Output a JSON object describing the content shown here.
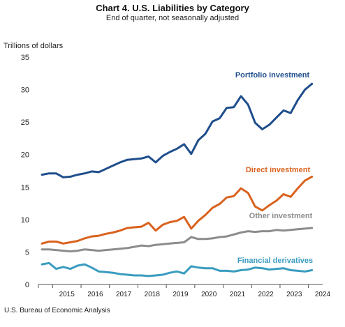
{
  "chart_data": {
    "type": "line",
    "title": "Chart 4. U.S. Liabilities by Category",
    "subtitle": "End of quarter, not seasonally adjusted",
    "ylabel": "Trillions of dollars",
    "xlabel": "",
    "source": "U.S. Bureau of Economic Analysis",
    "ylim": [
      0,
      35
    ],
    "yticks": [
      0,
      5,
      10,
      15,
      20,
      25,
      30,
      35
    ],
    "years": [
      "2015",
      "2016",
      "2017",
      "2018",
      "2019",
      "2020",
      "2021",
      "2022",
      "2023",
      "2024"
    ],
    "x": [
      "2014Q3",
      "2014Q4",
      "2015Q1",
      "2015Q2",
      "2015Q3",
      "2015Q4",
      "2016Q1",
      "2016Q2",
      "2016Q3",
      "2016Q4",
      "2017Q1",
      "2017Q2",
      "2017Q3",
      "2017Q4",
      "2018Q1",
      "2018Q2",
      "2018Q3",
      "2018Q4",
      "2019Q1",
      "2019Q2",
      "2019Q3",
      "2019Q4",
      "2020Q1",
      "2020Q2",
      "2020Q3",
      "2020Q4",
      "2021Q1",
      "2021Q2",
      "2021Q3",
      "2021Q4",
      "2022Q1",
      "2022Q2",
      "2022Q3",
      "2022Q4",
      "2023Q1",
      "2023Q2",
      "2023Q3",
      "2023Q4",
      "2024Q1",
      "2024Q2"
    ],
    "grid": false,
    "legend": "inline labels",
    "series": [
      {
        "name": "Portfolio investment",
        "color": "#1f4e8c",
        "values": [
          16.9,
          17.1,
          17.1,
          16.5,
          16.6,
          16.9,
          17.1,
          17.4,
          17.3,
          17.8,
          18.3,
          18.8,
          19.2,
          19.3,
          19.4,
          19.7,
          18.8,
          19.8,
          20.4,
          20.9,
          21.6,
          20.1,
          22.2,
          23.2,
          25.1,
          25.6,
          27.2,
          27.3,
          29.0,
          27.7,
          24.9,
          23.9,
          24.6,
          25.7,
          26.8,
          26.4,
          28.4,
          30.0,
          30.9,
          null
        ]
      },
      {
        "name": "Direct investment",
        "color": "#d9621e",
        "values": [
          6.3,
          6.6,
          6.6,
          6.3,
          6.5,
          6.7,
          7.1,
          7.4,
          7.5,
          7.8,
          8.0,
          8.3,
          8.7,
          8.8,
          8.9,
          9.5,
          8.3,
          9.2,
          9.6,
          9.8,
          10.4,
          8.6,
          9.8,
          10.7,
          11.8,
          12.4,
          13.4,
          13.6,
          14.8,
          14.1,
          12.0,
          11.4,
          12.2,
          12.9,
          13.9,
          13.5,
          14.8,
          16.0,
          16.6,
          null
        ]
      },
      {
        "name": "Other investment",
        "color": "#8c8c8c",
        "values": [
          5.4,
          5.4,
          5.3,
          5.2,
          5.1,
          5.2,
          5.4,
          5.3,
          5.2,
          5.3,
          5.4,
          5.5,
          5.6,
          5.8,
          6.0,
          5.9,
          6.1,
          6.2,
          6.3,
          6.4,
          6.5,
          7.3,
          7.0,
          7.0,
          7.1,
          7.3,
          7.4,
          7.7,
          8.0,
          8.2,
          8.1,
          8.2,
          8.2,
          8.4,
          8.3,
          8.4,
          8.5,
          8.6,
          8.7,
          null
        ]
      },
      {
        "name": "Financial derivatives",
        "color": "#3a9cc0",
        "values": [
          3.1,
          3.3,
          2.4,
          2.7,
          2.4,
          2.9,
          3.1,
          2.6,
          2.0,
          1.9,
          1.8,
          1.6,
          1.5,
          1.4,
          1.4,
          1.3,
          1.4,
          1.5,
          1.8,
          2.0,
          1.7,
          2.8,
          2.6,
          2.5,
          2.5,
          2.1,
          2.1,
          2.0,
          2.2,
          2.3,
          2.6,
          2.5,
          2.3,
          2.4,
          2.5,
          2.2,
          2.1,
          2.0,
          2.2,
          null
        ]
      }
    ]
  }
}
